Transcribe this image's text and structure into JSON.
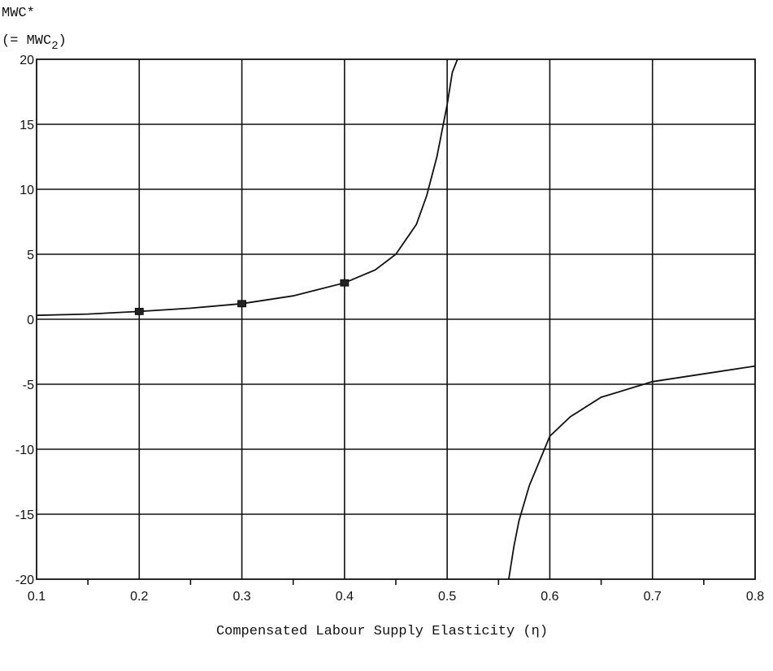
{
  "chart_data": {
    "type": "line",
    "ylabel_line1": "MWC*",
    "ylabel_line2_prefix": "(= MWC",
    "ylabel_line2_sub": "2",
    "ylabel_line2_suffix": ")",
    "xlabel": "Compensated Labour Supply Elasticity (η)",
    "xlim": [
      0.1,
      0.8
    ],
    "ylim": [
      -20,
      20
    ],
    "x_ticks": [
      0.1,
      0.2,
      0.3,
      0.4,
      0.5,
      0.6,
      0.7,
      0.8
    ],
    "x_tick_labels": [
      "0.1",
      "0.2",
      "0.3",
      "0.4",
      "0.5",
      "0.6",
      "0.7",
      "0.8"
    ],
    "y_ticks": [
      20,
      15,
      10,
      5,
      0,
      -5,
      -10,
      -15,
      -20
    ],
    "y_tick_labels": [
      "20",
      "15",
      "10",
      "5",
      "0",
      "-5",
      "-10",
      "-15",
      "-20"
    ],
    "grid": true,
    "series": [
      {
        "x": [
          0.1,
          0.15,
          0.2,
          0.25,
          0.3,
          0.35,
          0.4,
          0.43,
          0.45,
          0.47,
          0.48,
          0.49,
          0.5,
          0.505,
          0.51
        ],
        "y": [
          0.3,
          0.4,
          0.6,
          0.85,
          1.2,
          1.8,
          2.8,
          3.8,
          5.0,
          7.3,
          9.5,
          12.5,
          16.5,
          19.0,
          20.0
        ]
      },
      {
        "x": [
          0.56,
          0.565,
          0.57,
          0.58,
          0.6,
          0.62,
          0.65,
          0.7,
          0.75,
          0.8
        ],
        "y": [
          -20.0,
          -17.5,
          -15.5,
          -12.8,
          -9.0,
          -7.5,
          -6.0,
          -4.8,
          -4.2,
          -3.6
        ]
      }
    ],
    "markers": [
      {
        "x": 0.2,
        "y": 0.6
      },
      {
        "x": 0.3,
        "y": 1.2
      },
      {
        "x": 0.4,
        "y": 2.8
      }
    ]
  }
}
